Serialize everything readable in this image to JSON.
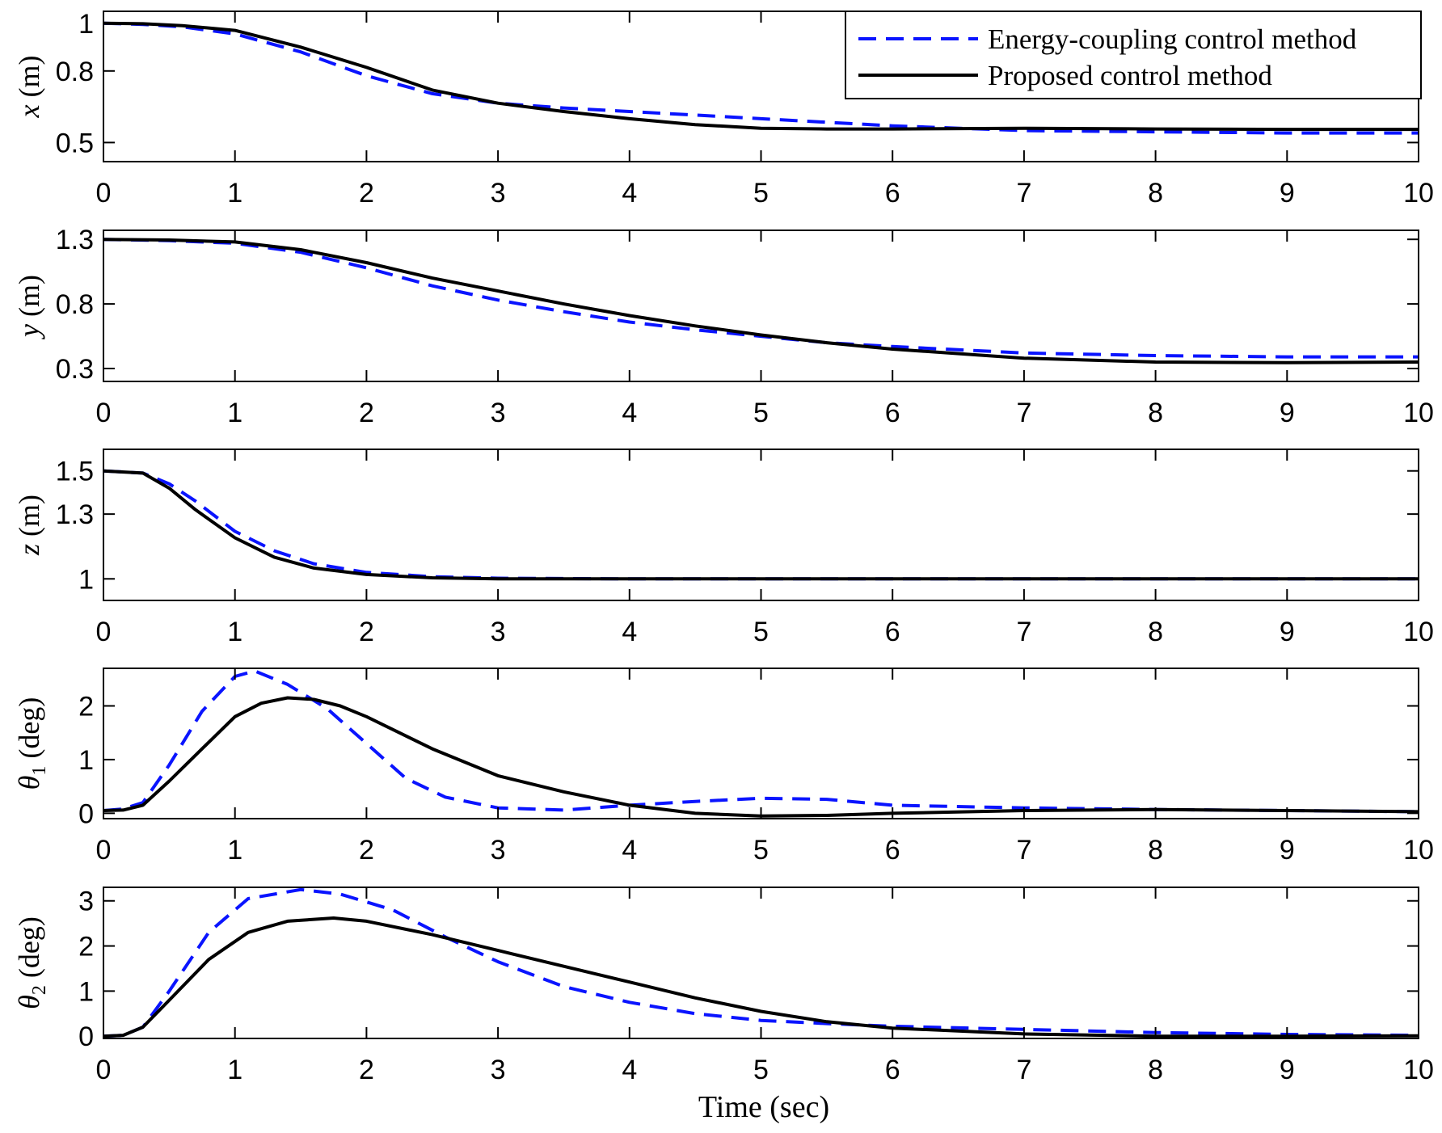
{
  "chart_data": {
    "type": "line",
    "xlabel": "Time (sec)",
    "xlim": [
      0,
      10
    ],
    "xticks": [
      0,
      1,
      2,
      3,
      4,
      5,
      6,
      7,
      8,
      9,
      10
    ],
    "legend": {
      "placement": "top-right of first panel",
      "entries": [
        {
          "name": "Energy-coupling control method",
          "color": "#0a14ff",
          "style": "dashed"
        },
        {
          "name": "Proposed control method",
          "color": "#000000",
          "style": "solid"
        }
      ]
    },
    "panels": [
      {
        "id": "x",
        "ylabel_var": "x",
        "ylabel_unit": "(m)",
        "ylim": [
          0.42,
          1.05
        ],
        "yticks": [
          0.5,
          0.8,
          1
        ],
        "ytick_labels": [
          "0.5",
          "0.8",
          "1"
        ],
        "series": [
          {
            "name": "Energy-coupling control method",
            "x": [
              0,
              0.3,
              0.6,
              1.0,
              1.5,
              2.0,
              2.5,
              3.0,
              3.5,
              4.0,
              4.5,
              5.0,
              5.5,
              6.0,
              7.0,
              8.0,
              9.0,
              10.0
            ],
            "y": [
              1.0,
              0.995,
              0.985,
              0.955,
              0.88,
              0.78,
              0.705,
              0.665,
              0.645,
              0.63,
              0.615,
              0.6,
              0.585,
              0.57,
              0.55,
              0.545,
              0.54,
              0.54
            ]
          },
          {
            "name": "Proposed control method",
            "x": [
              0,
              0.3,
              0.6,
              1.0,
              1.5,
              2.0,
              2.5,
              3.0,
              3.5,
              4.0,
              4.5,
              5.0,
              5.5,
              6.0,
              7.0,
              8.0,
              9.0,
              10.0
            ],
            "y": [
              1.0,
              0.998,
              0.99,
              0.97,
              0.9,
              0.815,
              0.72,
              0.665,
              0.63,
              0.6,
              0.575,
              0.56,
              0.557,
              0.557,
              0.56,
              0.557,
              0.555,
              0.555
            ]
          }
        ]
      },
      {
        "id": "y",
        "ylabel_var": "y",
        "ylabel_unit": "(m)",
        "ylim": [
          0.2,
          1.37
        ],
        "yticks": [
          0.3,
          0.8,
          1.3
        ],
        "ytick_labels": [
          "0.3",
          "0.8",
          "1.3"
        ],
        "series": [
          {
            "name": "Energy-coupling control method",
            "x": [
              0,
              0.5,
              1.0,
              1.5,
              2.0,
              2.5,
              3.0,
              3.5,
              4.0,
              4.5,
              5.0,
              5.5,
              6.0,
              7.0,
              8.0,
              9.0,
              10.0
            ],
            "y": [
              1.3,
              1.29,
              1.27,
              1.2,
              1.08,
              0.94,
              0.83,
              0.74,
              0.66,
              0.6,
              0.55,
              0.5,
              0.47,
              0.42,
              0.4,
              0.39,
              0.39
            ]
          },
          {
            "name": "Proposed control method",
            "x": [
              0,
              0.5,
              1.0,
              1.5,
              2.0,
              2.5,
              3.0,
              3.5,
              4.0,
              4.5,
              5.0,
              5.5,
              6.0,
              7.0,
              8.0,
              9.0,
              10.0
            ],
            "y": [
              1.3,
              1.295,
              1.28,
              1.22,
              1.12,
              1.0,
              0.9,
              0.8,
              0.71,
              0.63,
              0.56,
              0.5,
              0.45,
              0.38,
              0.35,
              0.345,
              0.35
            ]
          }
        ]
      },
      {
        "id": "z",
        "ylabel_var": "z",
        "ylabel_unit": "(m)",
        "ylim": [
          0.9,
          1.6
        ],
        "yticks": [
          1,
          1.3,
          1.5
        ],
        "ytick_labels": [
          "1",
          "1.3",
          "1.5"
        ],
        "series": [
          {
            "name": "Energy-coupling control method",
            "x": [
              0,
              0.3,
              0.5,
              0.7,
              1.0,
              1.3,
              1.6,
              2.0,
              2.5,
              3.0,
              4.0,
              5.0,
              6.0,
              7.0,
              8.0,
              9.0,
              10.0
            ],
            "y": [
              1.5,
              1.49,
              1.44,
              1.36,
              1.22,
              1.13,
              1.07,
              1.03,
              1.01,
              1.003,
              1.0,
              1.0,
              1.0,
              1.0,
              1.0,
              1.0,
              1.0
            ]
          },
          {
            "name": "Proposed control method",
            "x": [
              0,
              0.3,
              0.5,
              0.7,
              1.0,
              1.3,
              1.6,
              2.0,
              2.5,
              3.0,
              4.0,
              5.0,
              6.0,
              7.0,
              8.0,
              9.0,
              10.0
            ],
            "y": [
              1.5,
              1.49,
              1.42,
              1.32,
              1.19,
              1.1,
              1.05,
              1.02,
              1.005,
              1.0,
              1.0,
              1.0,
              1.0,
              1.0,
              1.0,
              1.0,
              1.0
            ]
          }
        ]
      },
      {
        "id": "theta1",
        "ylabel_var": "θ",
        "ylabel_sub": "1",
        "ylabel_unit": "(deg)",
        "ylim": [
          -0.1,
          2.7
        ],
        "yticks": [
          0,
          1,
          2
        ],
        "ytick_labels": [
          "0",
          "1",
          "2"
        ],
        "series": [
          {
            "name": "Energy-coupling control method",
            "x": [
              0,
              0.15,
              0.3,
              0.5,
              0.75,
              1.0,
              1.15,
              1.4,
              1.7,
              2.0,
              2.3,
              2.6,
              3.0,
              3.5,
              4.0,
              4.5,
              5.0,
              5.5,
              6.0,
              7.0,
              8.0,
              9.0,
              10.0
            ],
            "y": [
              0.05,
              0.08,
              0.2,
              0.9,
              1.9,
              2.55,
              2.65,
              2.4,
              1.95,
              1.3,
              0.65,
              0.3,
              0.1,
              0.06,
              0.15,
              0.22,
              0.28,
              0.26,
              0.15,
              0.1,
              0.07,
              0.05,
              0.03
            ]
          },
          {
            "name": "Proposed control method",
            "x": [
              0,
              0.15,
              0.3,
              0.5,
              0.75,
              1.0,
              1.2,
              1.4,
              1.6,
              1.8,
              2.0,
              2.5,
              3.0,
              3.5,
              4.0,
              4.5,
              5.0,
              5.5,
              6.0,
              7.0,
              8.0,
              9.0,
              10.0
            ],
            "y": [
              0.05,
              0.06,
              0.15,
              0.6,
              1.2,
              1.8,
              2.05,
              2.15,
              2.12,
              2.0,
              1.8,
              1.2,
              0.7,
              0.4,
              0.15,
              0.0,
              -0.05,
              -0.04,
              0.0,
              0.05,
              0.07,
              0.05,
              0.03
            ]
          }
        ]
      },
      {
        "id": "theta2",
        "ylabel_var": "θ",
        "ylabel_sub": "2",
        "ylabel_unit": "(deg)",
        "ylim": [
          -0.05,
          3.3
        ],
        "yticks": [
          0,
          1,
          2,
          3
        ],
        "ytick_labels": [
          "0",
          "1",
          "2",
          "3"
        ],
        "series": [
          {
            "name": "Energy-coupling control method",
            "x": [
              0,
              0.15,
              0.3,
              0.5,
              0.8,
              1.1,
              1.5,
              1.8,
              2.2,
              2.6,
              3.0,
              3.5,
              4.0,
              4.5,
              5.0,
              5.5,
              6.0,
              7.0,
              8.0,
              9.0,
              10.0
            ],
            "y": [
              0.0,
              0.02,
              0.2,
              1.0,
              2.3,
              3.05,
              3.25,
              3.15,
              2.8,
              2.2,
              1.65,
              1.1,
              0.75,
              0.5,
              0.35,
              0.28,
              0.22,
              0.15,
              0.08,
              0.04,
              0.02
            ]
          },
          {
            "name": "Proposed control method",
            "x": [
              0,
              0.15,
              0.3,
              0.5,
              0.8,
              1.1,
              1.4,
              1.75,
              2.0,
              2.5,
              3.0,
              3.5,
              4.0,
              4.5,
              5.0,
              5.5,
              6.0,
              7.0,
              8.0,
              9.0,
              10.0
            ],
            "y": [
              0.0,
              0.02,
              0.2,
              0.8,
              1.7,
              2.3,
              2.55,
              2.62,
              2.55,
              2.25,
              1.9,
              1.55,
              1.2,
              0.85,
              0.55,
              0.32,
              0.18,
              0.05,
              0.0,
              0.0,
              0.01
            ]
          }
        ]
      }
    ]
  }
}
